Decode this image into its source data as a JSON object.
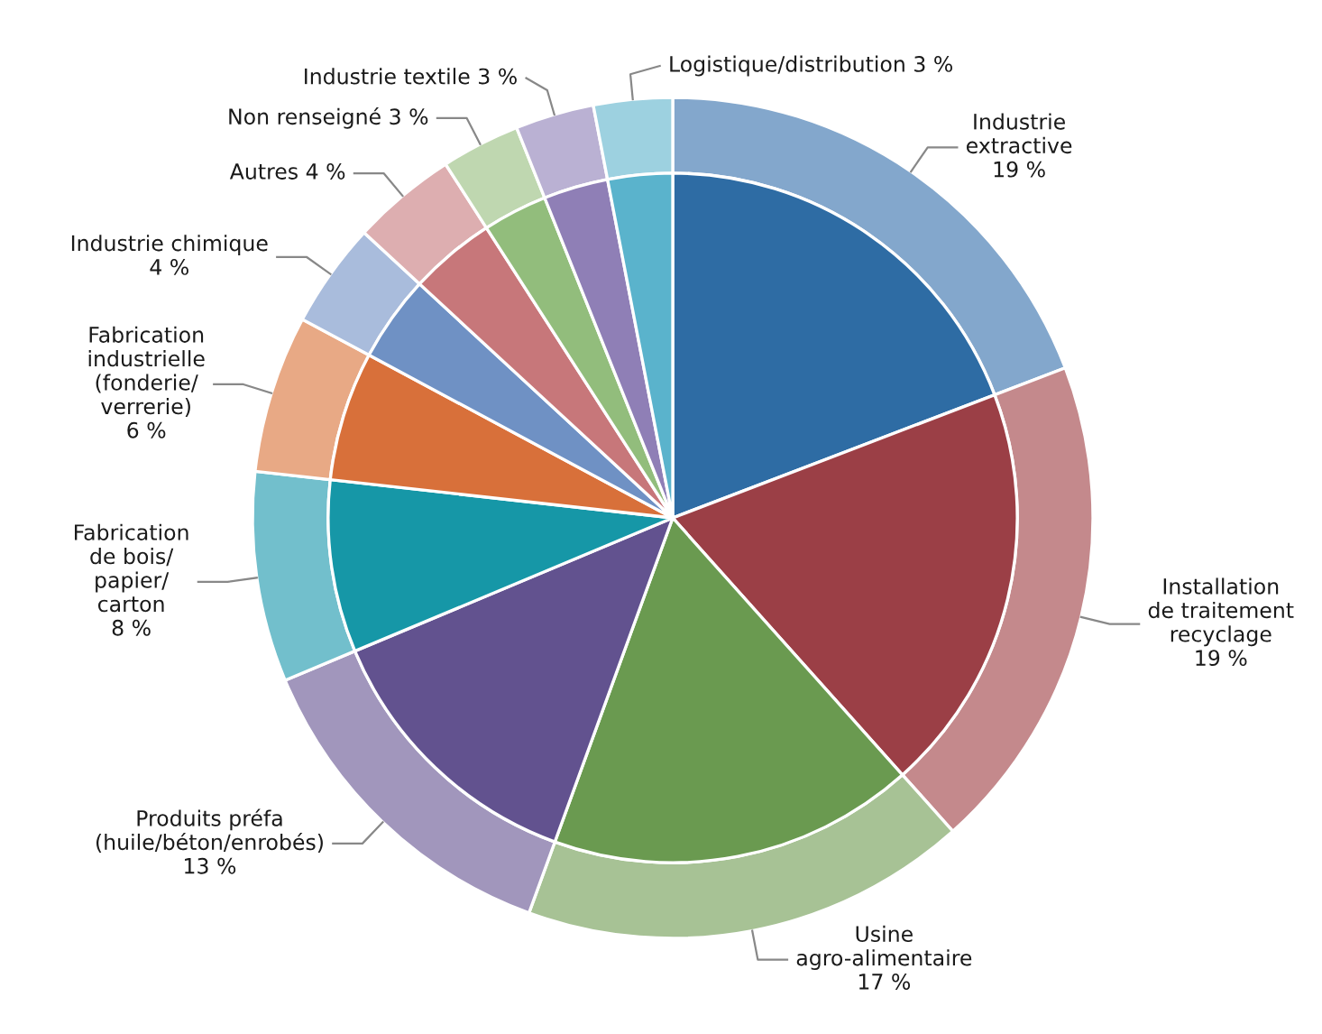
{
  "chart_data": {
    "type": "pie",
    "categories": [
      "Industrie\nextractive",
      "Installation\nde traitement\nrecyclage",
      "Usine\nagro-alimentaire",
      "Produits préfa\n(huile/béton/enrobés)",
      "Fabrication\nde bois/\npapier/\ncarton",
      "Fabrication\nindustrielle\n(fonderie/\nverrerie)",
      "Industrie chimique\n",
      "Autres",
      "Non renseigné",
      "Industrie textile",
      "Logistique/distribution"
    ],
    "value_labels": [
      "19 %",
      "19 %",
      "17 %",
      "13 %",
      "8 %",
      "6 %",
      "4 %",
      "4 %",
      "3 %",
      "3 %",
      "3 %"
    ],
    "series": [
      {
        "values": [
          19,
          19,
          17,
          13,
          8,
          6,
          4,
          4,
          3,
          3,
          3
        ],
        "colors": [
          "#83a7cc",
          "#c4898c",
          "#a7c295",
          "#a196bc",
          "#72bfcc",
          "#e8a985",
          "#a9bcdc",
          "#ddaeb0",
          "#bfd7b0",
          "#bab1d3",
          "#9dd1e0"
        ]
      },
      {
        "values": [
          19,
          19,
          17,
          13,
          8,
          6,
          4,
          4,
          3,
          3,
          3
        ],
        "colors": [
          "#2e6ca4",
          "#9b3f46",
          "#6a9a50",
          "#62528f",
          "#1697a7",
          "#d8703a",
          "#6f91c4",
          "#c7777a",
          "#92bd7c",
          "#8f7fb6",
          "#5ab3cc"
        ]
      }
    ]
  }
}
